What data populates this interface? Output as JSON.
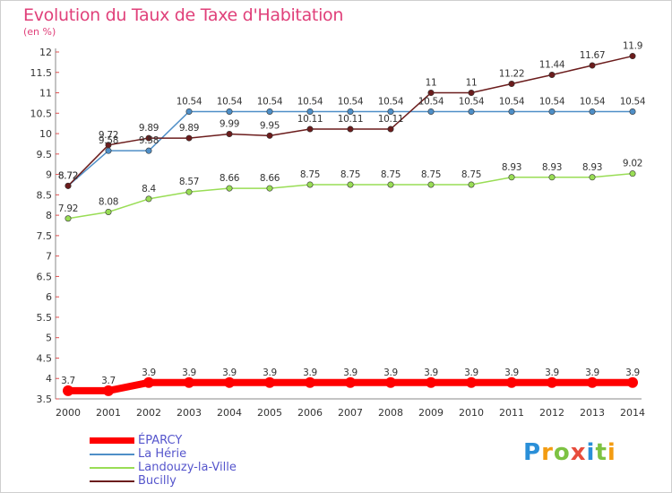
{
  "chart_data": {
    "type": "line",
    "title": "Evolution du Taux de Taxe d'Habitation",
    "unit": "(en %)",
    "x": [
      "2000",
      "2001",
      "2002",
      "2003",
      "2004",
      "2005",
      "2006",
      "2007",
      "2008",
      "2009",
      "2010",
      "2011",
      "2012",
      "2013",
      "2014"
    ],
    "y_ticks": [
      "3.5",
      "4",
      "4.5",
      "5",
      "5.5",
      "6",
      "6.5",
      "7",
      "7.5",
      "8",
      "8.5",
      "9",
      "9.5",
      "10",
      "10.5",
      "11",
      "11.5",
      "12"
    ],
    "ylim": [
      3.5,
      12
    ],
    "grid": false,
    "series": [
      {
        "name": "ÉPARCY",
        "color": "#ff0000",
        "values": [
          3.7,
          3.7,
          3.9,
          3.9,
          3.9,
          3.9,
          3.9,
          3.9,
          3.9,
          3.9,
          3.9,
          3.9,
          3.9,
          3.9,
          3.9
        ],
        "labels": [
          "3.7",
          "3.7",
          "3.9",
          "3.9",
          "3.9",
          "3.9",
          "3.9",
          "3.9",
          "3.9",
          "3.9",
          "3.9",
          "3.9",
          "3.9",
          "3.9",
          "3.9"
        ]
      },
      {
        "name": "La Hérie",
        "color": "#4f8fc7",
        "values": [
          8.72,
          9.58,
          9.58,
          10.54,
          10.54,
          10.54,
          10.54,
          10.54,
          10.54,
          10.54,
          10.54,
          10.54,
          10.54,
          10.54,
          10.54
        ],
        "labels": [
          "8.72",
          "9.58",
          "9.58",
          "10.54",
          "10.54",
          "10.54",
          "10.54",
          "10.54",
          "10.54",
          "10.54",
          "10.54",
          "10.54",
          "10.54",
          "10.54",
          "10.54"
        ]
      },
      {
        "name": "Landouzy-la-Ville",
        "color": "#99dd55",
        "values": [
          7.92,
          8.08,
          8.4,
          8.57,
          8.66,
          8.66,
          8.75,
          8.75,
          8.75,
          8.75,
          8.75,
          8.93,
          8.93,
          8.93,
          9.02
        ],
        "labels": [
          "7.92",
          "8.08",
          "8.4",
          "8.57",
          "8.66",
          "8.66",
          "8.75",
          "8.75",
          "8.75",
          "8.75",
          "8.75",
          "8.93",
          "8.93",
          "8.93",
          "9.02"
        ]
      },
      {
        "name": "Bucilly",
        "color": "#6b1c1c",
        "values": [
          8.72,
          9.72,
          9.89,
          9.89,
          9.99,
          9.95,
          10.11,
          10.11,
          10.11,
          11,
          11,
          11.22,
          11.44,
          11.67,
          11.9
        ],
        "labels": [
          "8.72",
          "9.72",
          "9.89",
          "9.89",
          "9.99",
          "9.95",
          "10.11",
          "10.11",
          "10.11",
          "11",
          "11",
          "11.22",
          "11.44",
          "11.67",
          "11.9"
        ]
      }
    ],
    "legend_position": "bottom-left"
  },
  "logo": {
    "letters": [
      "P",
      "r",
      "o",
      "x",
      "i",
      "t",
      "i"
    ],
    "colors": [
      "#2a8fd8",
      "#f39c12",
      "#7dc242",
      "#e74c3c",
      "#2a8fd8",
      "#7dc242",
      "#f39c12"
    ]
  }
}
